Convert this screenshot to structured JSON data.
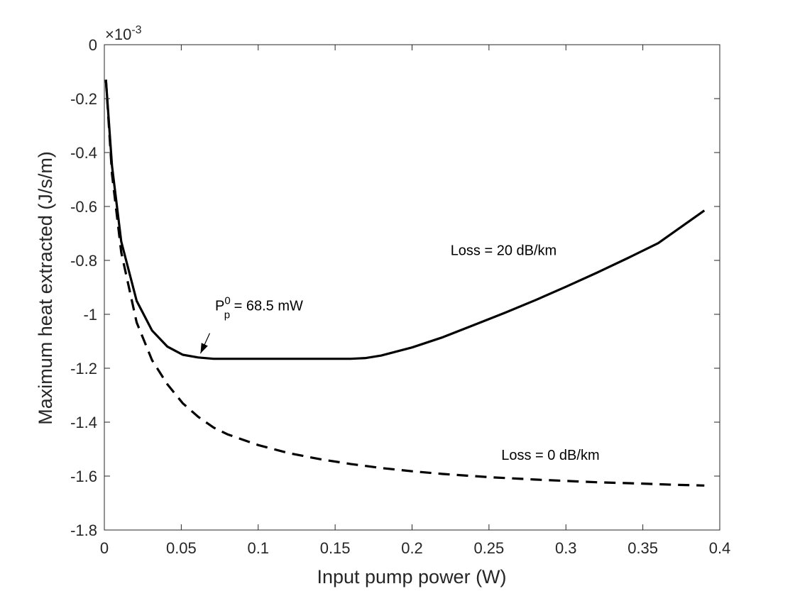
{
  "chart_data": {
    "type": "line",
    "xlabel": "Input pump power (W)",
    "ylabel": "Maximum heat extracted (J/s/m)",
    "exponent_label": "×10",
    "exponent_power": "-3",
    "xlim": [
      0,
      0.4
    ],
    "ylim": [
      -1.8,
      0
    ],
    "x_ticks": [
      0,
      0.05,
      0.1,
      0.15,
      0.2,
      0.25,
      0.3,
      0.35,
      0.4
    ],
    "x_tick_labels": [
      "0",
      "0.05",
      "0.1",
      "0.15",
      "0.2",
      "0.25",
      "0.3",
      "0.35",
      "0.4"
    ],
    "y_ticks": [
      0,
      -0.2,
      -0.4,
      -0.6,
      -0.8,
      -1,
      -1.2,
      -1.4,
      -1.6,
      -1.8
    ],
    "y_tick_labels": [
      "0",
      "-0.2",
      "-0.4",
      "-0.6",
      "-0.8",
      "-1",
      "-1.2",
      "-1.4",
      "-1.6",
      "-1.8"
    ],
    "grid": false,
    "series": [
      {
        "style": "solid",
        "color": "#000000",
        "x": [
          0.001,
          0.005,
          0.011,
          0.021,
          0.031,
          0.041,
          0.051,
          0.061,
          0.071,
          0.08,
          0.1,
          0.12,
          0.14,
          0.16,
          0.17,
          0.18,
          0.2,
          0.22,
          0.24,
          0.26,
          0.28,
          0.3,
          0.32,
          0.34,
          0.36,
          0.39
        ],
        "y": [
          -0.13,
          -0.45,
          -0.73,
          -0.95,
          -1.06,
          -1.12,
          -1.15,
          -1.16,
          -1.165,
          -1.165,
          -1.165,
          -1.165,
          -1.165,
          -1.165,
          -1.162,
          -1.153,
          -1.123,
          -1.085,
          -1.04,
          -0.995,
          -0.948,
          -0.898,
          -0.846,
          -0.792,
          -0.736,
          -0.615
        ]
      },
      {
        "style": "dashed",
        "color": "#000000",
        "x": [
          0.001,
          0.005,
          0.011,
          0.021,
          0.031,
          0.041,
          0.051,
          0.061,
          0.071,
          0.08,
          0.1,
          0.12,
          0.14,
          0.16,
          0.18,
          0.2,
          0.22,
          0.25,
          0.28,
          0.3,
          0.32,
          0.35,
          0.37,
          0.39
        ],
        "y": [
          -0.13,
          -0.48,
          -0.77,
          -1.03,
          -1.17,
          -1.26,
          -1.33,
          -1.38,
          -1.42,
          -1.445,
          -1.485,
          -1.515,
          -1.537,
          -1.555,
          -1.57,
          -1.582,
          -1.592,
          -1.604,
          -1.613,
          -1.618,
          -1.623,
          -1.628,
          -1.632,
          -1.635
        ]
      }
    ],
    "annotations": [
      {
        "id": "loss20",
        "text": "Loss = 20 dB/km",
        "x": 0.225,
        "y": -0.78
      },
      {
        "id": "loss0",
        "text": "Loss = 0 dB/km",
        "x": 0.258,
        "y": -1.54
      },
      {
        "id": "pp",
        "text_main": "P",
        "text_sup": "0",
        "text_sub": "p",
        "text_rest": " = 68.5 mW",
        "x": 0.072,
        "y": -0.985,
        "arrow_from": [
          0.0685,
          -1.07
        ],
        "arrow_to": [
          0.0625,
          -1.145
        ]
      }
    ]
  }
}
